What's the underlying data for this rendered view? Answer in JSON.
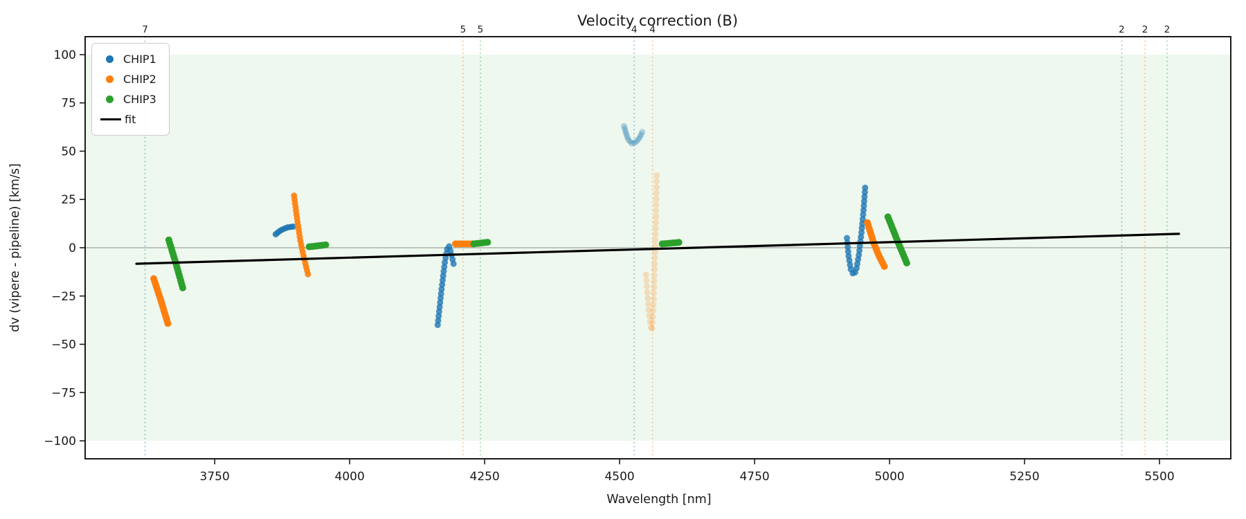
{
  "title": "Velocity correction (B)",
  "legend": {
    "entries": [
      {
        "label": "CHIP1",
        "color": "#1f77b4",
        "type": "dot"
      },
      {
        "label": "CHIP2",
        "color": "#ff7f0e",
        "type": "dot"
      },
      {
        "label": "CHIP3",
        "color": "#2ca02c",
        "type": "dot"
      },
      {
        "label": "fit",
        "color": "#000000",
        "type": "line"
      }
    ]
  },
  "chart_data": {
    "type": "scatter",
    "title": "Velocity correction (B)",
    "xlabel": "Wavelength [nm]",
    "ylabel": "dv (vipere - pipeline) [km/s]",
    "xlim": [
      3510,
      5632
    ],
    "ylim": [
      -109.3,
      109.3
    ],
    "x_ticks": [
      3750,
      4000,
      4250,
      4500,
      4750,
      5000,
      5250,
      5500
    ],
    "y_ticks": [
      -100,
      -75,
      -50,
      -25,
      0,
      25,
      50,
      75,
      100
    ],
    "grid": false,
    "legend_position": "upper left",
    "shaded_band": {
      "ymin": -100,
      "ymax": 100,
      "color": "rgba(44,160,44,0.08)"
    },
    "zero_line": {
      "y": 0,
      "color": "#8c8c8c"
    },
    "spine_color": "#1a1a1a",
    "colors": {
      "CHIP1": "#1f77b4",
      "CHIP2": "#ff7f0e",
      "CHIP3": "#2ca02c",
      "fit": "#000000"
    },
    "vlines": [
      {
        "x": 3621,
        "series": "CHIP1",
        "label": "7"
      },
      {
        "x": 4210,
        "series": "CHIP2",
        "label": "5"
      },
      {
        "x": 4242,
        "series": "CHIP3",
        "label": "5"
      },
      {
        "x": 4527,
        "series": "CHIP1",
        "label": "4"
      },
      {
        "x": 4561,
        "series": "CHIP2",
        "label": "4"
      },
      {
        "x": 5430,
        "series": "CHIP1",
        "label": "2"
      },
      {
        "x": 5473,
        "series": "CHIP2",
        "label": "2"
      },
      {
        "x": 5514,
        "series": "CHIP3",
        "label": "2"
      }
    ],
    "series": [
      {
        "name": "CHIP1",
        "color": "#1f77b4",
        "segments": [
          {
            "alpha": 0.9,
            "r": 4.5,
            "spacing": 4,
            "points": [
              [
                3863,
                7
              ],
              [
                3872,
                9
              ],
              [
                3884,
                10.5
              ],
              [
                3897,
                11
              ]
            ]
          },
          {
            "alpha": 0.8,
            "r": 4.5,
            "spacing": 6.5,
            "points": [
              [
                4163,
                -40
              ],
              [
                4170,
                -22
              ],
              [
                4176,
                -8
              ],
              [
                4181,
                0
              ],
              [
                4184,
                1
              ],
              [
                4188,
                -3
              ],
              [
                4193,
                -9
              ]
            ]
          },
          {
            "alpha": 0.3,
            "r": 4.5,
            "spacing": 4,
            "points": [
              [
                4508,
                63
              ],
              [
                4515,
                56.5
              ],
              [
                4522,
                54
              ],
              [
                4530,
                54.5
              ],
              [
                4537,
                57
              ],
              [
                4542,
                60
              ]
            ]
          },
          {
            "alpha": 0.8,
            "r": 4.5,
            "spacing": 6.5,
            "points": [
              [
                4921,
                5
              ],
              [
                4924,
                -4
              ],
              [
                4928,
                -11
              ],
              [
                4933,
                -14
              ],
              [
                4938,
                -12
              ],
              [
                4943,
                -4
              ],
              [
                4948,
                8
              ],
              [
                4952,
                20
              ],
              [
                4955,
                32
              ]
            ]
          }
        ]
      },
      {
        "name": "CHIP2",
        "color": "#ff7f0e",
        "segments": [
          {
            "alpha": 1,
            "r": 5,
            "spacing": 4,
            "points": [
              [
                3637,
                -16
              ],
              [
                3650,
                -27
              ],
              [
                3664,
                -40
              ]
            ]
          },
          {
            "alpha": 0.9,
            "r": 4.5,
            "spacing": 5.5,
            "points": [
              [
                3897,
                27
              ],
              [
                3903,
                14
              ],
              [
                3909,
                3
              ],
              [
                3916,
                -6
              ],
              [
                3923,
                -14
              ]
            ]
          },
          {
            "alpha": 1,
            "r": 5,
            "spacing": 4,
            "points": [
              [
                4196,
                2
              ],
              [
                4227,
                2
              ]
            ]
          },
          {
            "alpha": 0.22,
            "r": 4.5,
            "spacing": 8.5,
            "points": [
              [
                4549,
                -14
              ],
              [
                4553,
                -30
              ],
              [
                4557,
                -40
              ],
              [
                4560,
                -43
              ],
              [
                4563,
                -28
              ],
              [
                4565,
                -8
              ],
              [
                4567,
                12
              ],
              [
                4568,
                28
              ],
              [
                4569,
                40
              ]
            ]
          },
          {
            "alpha": 1,
            "r": 5,
            "spacing": 4,
            "points": [
              [
                4959,
                13
              ],
              [
                4970,
                3
              ],
              [
                4980,
                -4
              ],
              [
                4991,
                -10
              ]
            ]
          }
        ]
      },
      {
        "name": "CHIP3",
        "color": "#2ca02c",
        "segments": [
          {
            "alpha": 1,
            "r": 5,
            "spacing": 4,
            "points": [
              [
                3665,
                4
              ],
              [
                3678,
                -8
              ],
              [
                3691,
                -21
              ]
            ]
          },
          {
            "alpha": 1,
            "r": 5,
            "spacing": 4,
            "points": [
              [
                3925,
                0.5
              ],
              [
                3957,
                1.5
              ]
            ]
          },
          {
            "alpha": 1,
            "r": 5,
            "spacing": 4,
            "points": [
              [
                4230,
                2
              ],
              [
                4260,
                3
              ]
            ]
          },
          {
            "alpha": 1,
            "r": 5,
            "spacing": 4,
            "points": [
              [
                4579,
                2
              ],
              [
                4612,
                2.8
              ]
            ]
          },
          {
            "alpha": 1,
            "r": 5,
            "spacing": 4,
            "points": [
              [
                4997,
                16
              ],
              [
                5014,
                4
              ],
              [
                5032,
                -8
              ]
            ]
          }
        ]
      }
    ],
    "fit": {
      "name": "fit",
      "color": "#000000",
      "width": 3.2,
      "points": [
        [
          3605,
          -8.3
        ],
        [
          5536,
          7.2
        ]
      ]
    }
  }
}
